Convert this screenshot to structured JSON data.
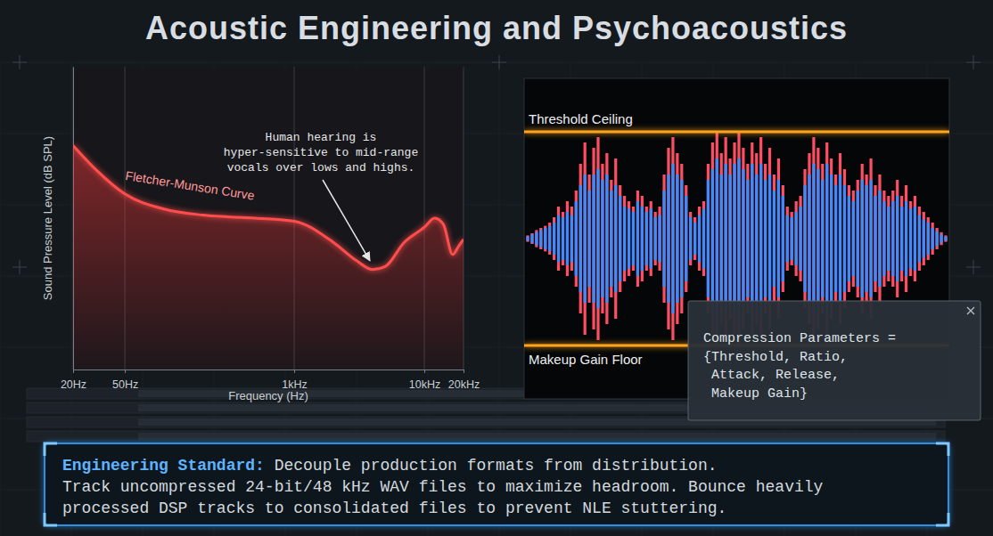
{
  "header": {
    "title": "Acoustic Engineering and Psychoacoustics"
  },
  "chart_data": [
    {
      "type": "line",
      "x_label": "Frequency (Hz)",
      "y_label": "Sound Pressure Level (dB SPL)",
      "log": "x",
      "grid": true,
      "tick_labels": "x",
      "xlim": [
        20,
        20000
      ],
      "xticks": [
        {
          "value": 20,
          "label": "20Hz"
        },
        {
          "value": 50,
          "label": "50Hz"
        },
        {
          "value": 1000,
          "label": "1kHz"
        },
        {
          "value": 10000,
          "label": "10kHz"
        },
        {
          "value": 20000,
          "label": "20kHz"
        }
      ],
      "ylim": [
        0,
        100
      ],
      "x": [
        20,
        30,
        50,
        100,
        200,
        500,
        1000,
        2000,
        3000,
        4000,
        5000,
        7000,
        10000,
        12000,
        14000,
        16500,
        18500,
        20000
      ],
      "series": [
        {
          "name": "Fletcher-Munson Curve",
          "color": "#ff4d4d",
          "values": [
            74,
            66,
            58,
            53,
            51,
            50,
            49,
            42,
            36,
            33,
            34,
            42,
            47,
            50,
            48,
            38,
            41,
            43
          ]
        }
      ],
      "annotation": "Human hearing is hyper-sensitive to mid-range vocals over lows and highs."
    },
    {
      "type": "waveform",
      "tick_labels": false,
      "ylim": [
        -1.5,
        1.5
      ],
      "series": [
        {
          "color": "#ff4d63",
          "values": [
            0.03,
            0.05,
            0.08,
            0.1,
            0.12,
            0.15,
            0.2,
            0.3,
            0.25,
            0.35,
            0.3,
            0.45,
            0.7,
            0.9,
            0.6,
            0.85,
            0.95,
            0.7,
            0.8,
            0.55,
            0.75,
            0.5,
            0.4,
            0.35,
            0.3,
            0.45,
            0.4,
            0.3,
            0.35,
            0.25,
            0.3,
            0.6,
            0.85,
            0.95,
            0.8,
            0.7,
            0.5,
            0.25,
            0.2,
            0.3,
            0.35,
            0.7,
            0.9,
            1.0,
            0.8,
            0.95,
            0.75,
            0.9,
            1.0,
            0.85,
            0.7,
            0.9,
            0.8,
            0.95,
            0.7,
            0.85,
            0.6,
            0.75,
            0.5,
            0.3,
            0.25,
            0.35,
            0.4,
            0.65,
            0.8,
            0.95,
            0.85,
            0.7,
            0.9,
            0.75,
            0.6,
            0.8,
            0.65,
            0.5,
            0.45,
            0.55,
            0.7,
            0.6,
            0.75,
            0.5,
            0.6,
            0.45,
            0.4,
            0.45,
            0.55,
            0.4,
            0.5,
            0.35,
            0.4,
            0.3,
            0.25,
            0.2,
            0.15,
            0.1,
            0.06,
            0.03
          ]
        },
        {
          "color": "#3d8bff",
          "values": [
            0.02,
            0.04,
            0.06,
            0.08,
            0.1,
            0.12,
            0.15,
            0.22,
            0.2,
            0.25,
            0.22,
            0.35,
            0.5,
            0.6,
            0.45,
            0.6,
            0.65,
            0.55,
            0.6,
            0.45,
            0.5,
            0.4,
            0.3,
            0.28,
            0.25,
            0.35,
            0.3,
            0.25,
            0.28,
            0.2,
            0.22,
            0.45,
            0.6,
            0.7,
            0.6,
            0.55,
            0.4,
            0.2,
            0.15,
            0.22,
            0.28,
            0.55,
            0.65,
            0.75,
            0.6,
            0.7,
            0.6,
            0.7,
            0.75,
            0.65,
            0.55,
            0.7,
            0.6,
            0.7,
            0.55,
            0.6,
            0.45,
            0.55,
            0.4,
            0.22,
            0.2,
            0.25,
            0.3,
            0.5,
            0.6,
            0.7,
            0.65,
            0.55,
            0.7,
            0.6,
            0.5,
            0.6,
            0.5,
            0.4,
            0.35,
            0.45,
            0.55,
            0.5,
            0.55,
            0.4,
            0.45,
            0.35,
            0.3,
            0.35,
            0.4,
            0.3,
            0.35,
            0.28,
            0.3,
            0.22,
            0.18,
            0.15,
            0.1,
            0.07,
            0.04,
            0.02
          ]
        }
      ],
      "thresholds": [
        {
          "label": "Threshold Ceiling",
          "value": 1,
          "color": "#ffa51f"
        },
        {
          "label": "Makeup Gain Floor",
          "value": -1,
          "color": "#ffa51f"
        }
      ]
    }
  ],
  "compression_box": {
    "lines": [
      "Compression Parameters =",
      "{Threshold, Ratio,",
      " Attack, Release,",
      " Makeup Gain}"
    ]
  },
  "standard_box": {
    "label": "Engineering Standard:",
    "lines": [
      "Decouple production formats from distribution.",
      "Track uncompressed 24-bit/48 kHz WAV files to maximize headroom. Bounce heavily processed DSP tracks to consolidated files to prevent NLE stuttering."
    ]
  }
}
